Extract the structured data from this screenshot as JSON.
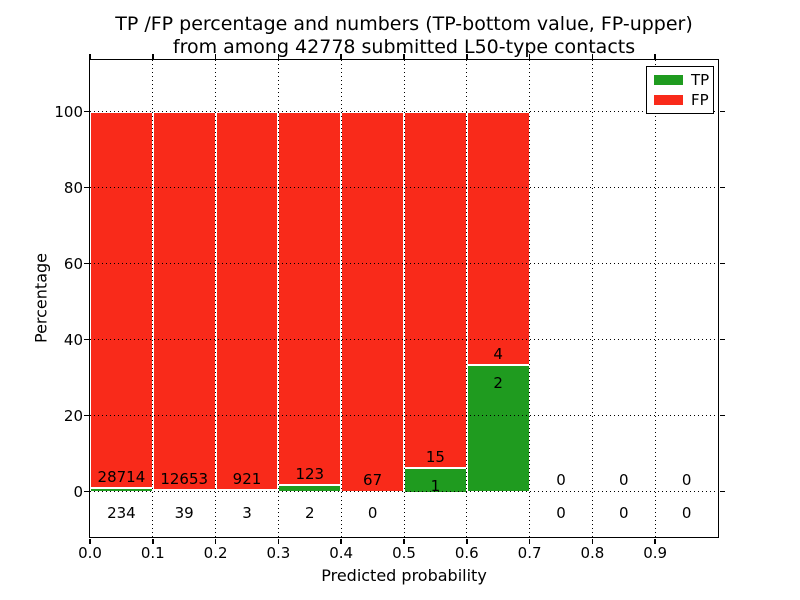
{
  "figure": {
    "title_line1": "TP /FP percentage and numbers (TP-bottom value, FP-upper)",
    "title_line2": "from among 42778 submitted L50-type contacts"
  },
  "chart_data": {
    "type": "bar",
    "stacked": true,
    "title": "TP /FP percentage and numbers (TP-bottom value, FP-upper) from among 42778 submitted L50-type contacts",
    "xlabel": "Predicted probability",
    "ylabel": "Percentage",
    "xlim": [
      0.0,
      1.0
    ],
    "ylim": [
      -12,
      113.5
    ],
    "grid": "dotted",
    "legend_position": "upper right",
    "total_contacts": 42778,
    "x_ticks": [
      "0.0",
      "0.1",
      "0.2",
      "0.3",
      "0.4",
      "0.5",
      "0.6",
      "0.7",
      "0.8",
      "0.9"
    ],
    "y_ticks": [
      "0",
      "20",
      "40",
      "60",
      "80",
      "100"
    ],
    "series": [
      {
        "name": "TP",
        "color": "#1f9b1f",
        "position": "bottom"
      },
      {
        "name": "FP",
        "color": "#f92a1a",
        "position": "upper"
      }
    ],
    "bins": [
      {
        "range": [
          0.0,
          0.1
        ],
        "tp": 234,
        "fp": 28714
      },
      {
        "range": [
          0.1,
          0.2
        ],
        "tp": 39,
        "fp": 12653
      },
      {
        "range": [
          0.2,
          0.3
        ],
        "tp": 3,
        "fp": 921
      },
      {
        "range": [
          0.3,
          0.4
        ],
        "tp": 2,
        "fp": 123
      },
      {
        "range": [
          0.4,
          0.5
        ],
        "tp": 0,
        "fp": 67
      },
      {
        "range": [
          0.5,
          0.6
        ],
        "tp": 1,
        "fp": 15
      },
      {
        "range": [
          0.6,
          0.7
        ],
        "tp": 2,
        "fp": 4
      },
      {
        "range": [
          0.7,
          0.8
        ],
        "tp": 0,
        "fp": 0
      },
      {
        "range": [
          0.8,
          0.9
        ],
        "tp": 0,
        "fp": 0
      },
      {
        "range": [
          0.9,
          1.0
        ],
        "tp": 0,
        "fp": 0
      }
    ]
  }
}
